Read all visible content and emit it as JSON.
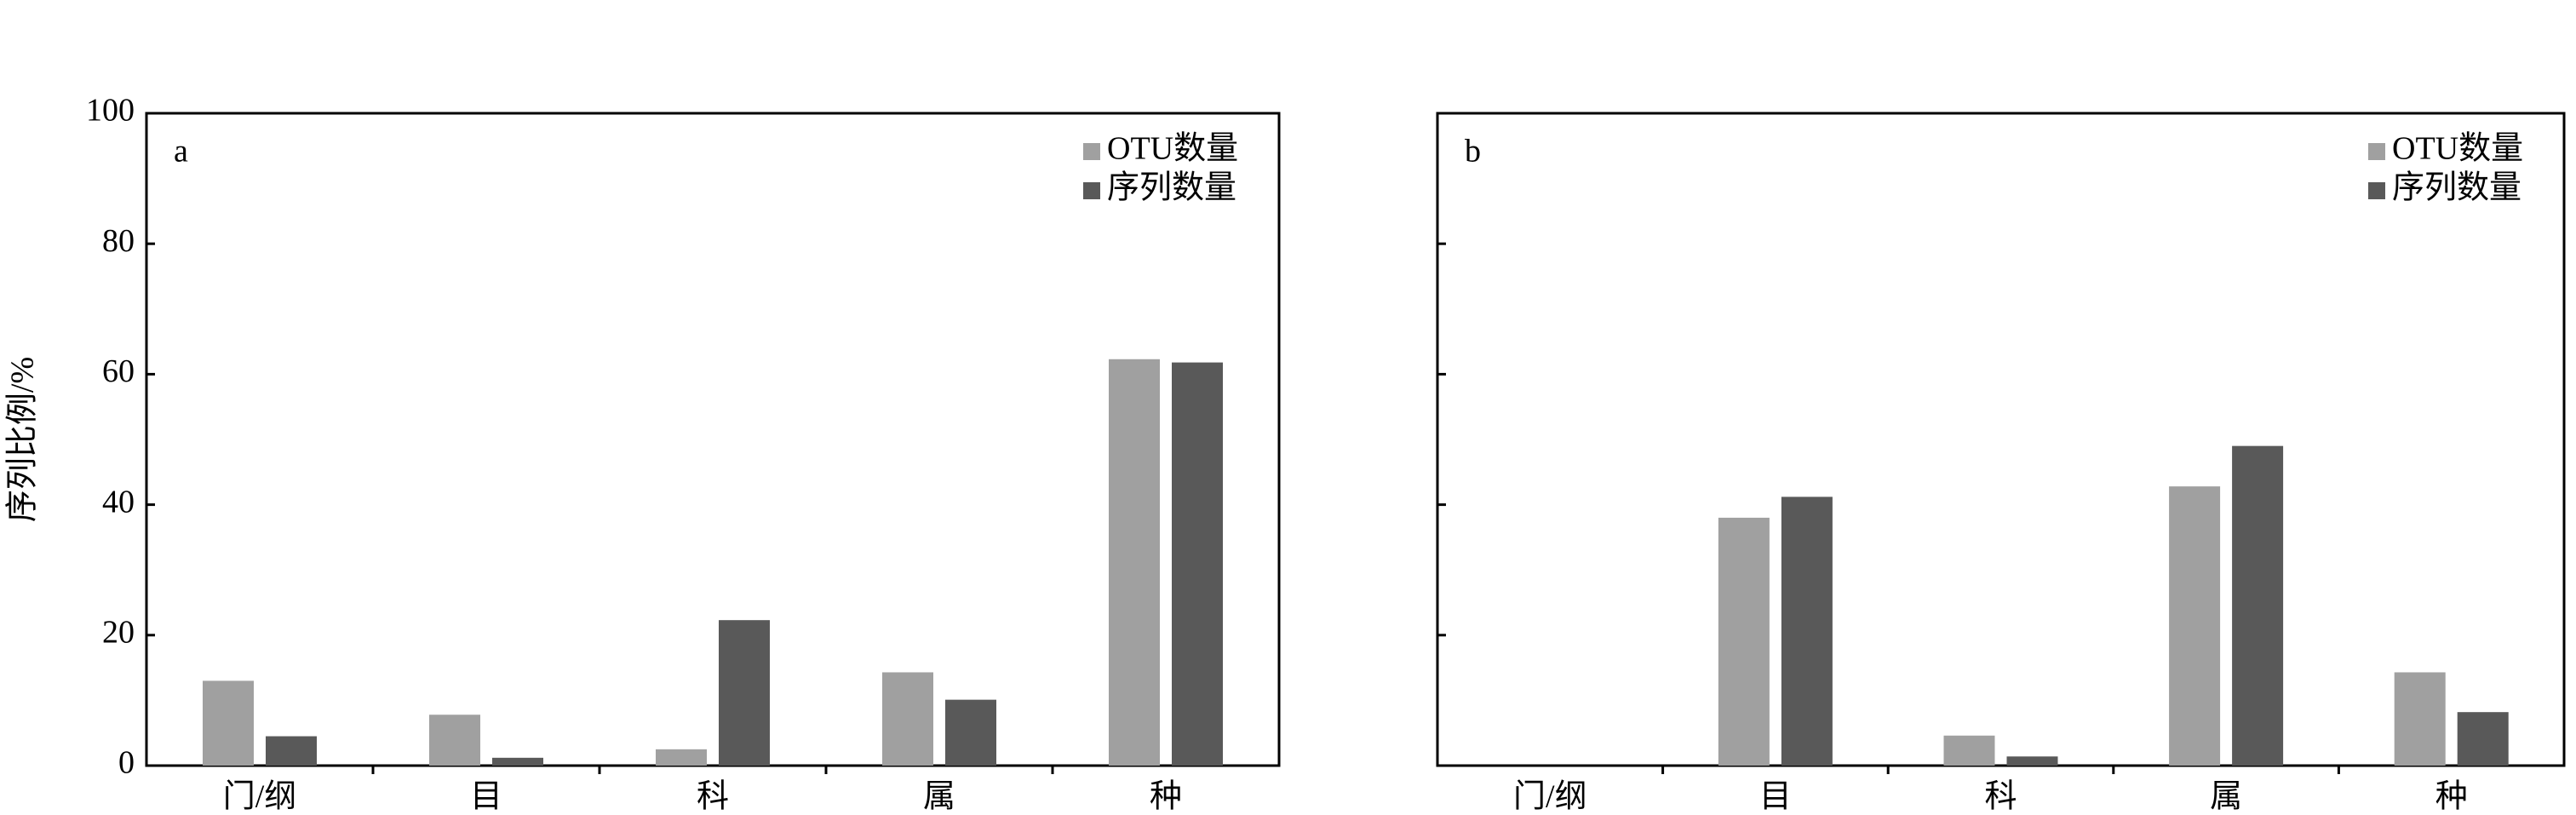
{
  "chart_data": [
    {
      "type": "bar",
      "label": "a",
      "ylabel": "序列比例/%",
      "categories": [
        "门/纲",
        "目",
        "科",
        "属",
        "种"
      ],
      "series": [
        {
          "name": "OTU数量",
          "color": "#a0a0a0",
          "values": [
            13,
            7.8,
            2.5,
            14.3,
            62.3
          ]
        },
        {
          "name": "序列数量",
          "color": "#595959",
          "values": [
            4.5,
            1.2,
            22.3,
            10.1,
            61.8
          ]
        }
      ],
      "ylim": [
        0,
        100
      ],
      "yticks": [
        0,
        20,
        40,
        60,
        80,
        100
      ],
      "show_ytick_labels": true
    },
    {
      "type": "bar",
      "label": "b",
      "categories": [
        "门/纲",
        "目",
        "科",
        "属",
        "种"
      ],
      "series": [
        {
          "name": "OTU数量",
          "color": "#a0a0a0",
          "values": [
            0,
            38,
            4.6,
            42.8,
            14.3
          ]
        },
        {
          "name": "序列数量",
          "color": "#595959",
          "values": [
            0,
            41.2,
            1.4,
            49,
            8.2
          ]
        }
      ],
      "ylim": [
        0,
        100
      ],
      "yticks": [
        0,
        20,
        40,
        60,
        80,
        100
      ],
      "show_ytick_labels": false
    }
  ]
}
